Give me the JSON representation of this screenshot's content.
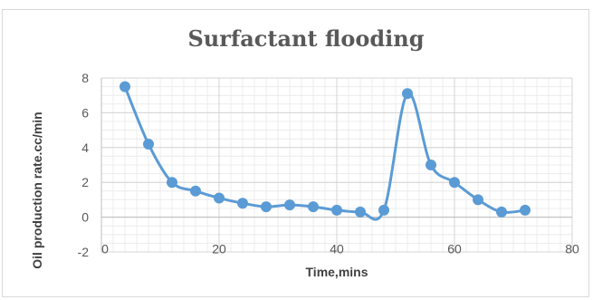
{
  "chart_data": {
    "type": "line",
    "title": "Surfactant flooding",
    "xlabel": "Time,mins",
    "ylabel": "Oil production rate.cc/min",
    "xlim": [
      0,
      80
    ],
    "ylim": [
      -2,
      8
    ],
    "x_ticks": [
      0,
      20,
      40,
      60,
      80
    ],
    "y_ticks": [
      -2,
      0,
      2,
      4,
      6,
      8
    ],
    "grid": true,
    "smooth": true,
    "legend": "none",
    "series": [
      {
        "color": "#5b9bd5",
        "x": [
          4,
          8,
          12,
          16,
          20,
          24,
          28,
          32,
          36,
          40,
          44,
          48,
          52,
          56,
          60,
          64,
          68,
          72
        ],
        "y": [
          7.5,
          4.2,
          2.0,
          1.5,
          1.1,
          0.8,
          0.6,
          0.7,
          0.6,
          0.4,
          0.3,
          0.4,
          7.1,
          3.0,
          2.0,
          1.0,
          0.3,
          0.4
        ]
      }
    ]
  }
}
